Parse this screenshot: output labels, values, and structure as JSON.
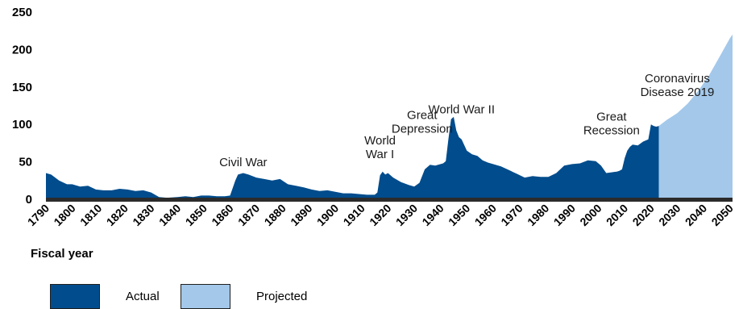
{
  "chart_data": {
    "type": "area",
    "title": "",
    "xlabel": "Fiscal year",
    "ylabel": "",
    "xlim": [
      1790,
      2051
    ],
    "ylim": [
      0,
      250
    ],
    "y_ticks": [
      0,
      50,
      100,
      150,
      200,
      250
    ],
    "x_ticks": [
      1790,
      1800,
      1810,
      1820,
      1830,
      1840,
      1850,
      1860,
      1870,
      1880,
      1890,
      1900,
      1910,
      1920,
      1930,
      1940,
      1950,
      1960,
      1970,
      1980,
      1990,
      2000,
      2010,
      2020,
      2030,
      2040,
      2050
    ],
    "grid": false,
    "legend_position": "bottom-left",
    "series": [
      {
        "name": "Actual",
        "color": "#004c8c",
        "x": [
          1790,
          1792,
          1795,
          1798,
          1800,
          1803,
          1806,
          1809,
          1812,
          1815,
          1818,
          1821,
          1824,
          1827,
          1830,
          1833,
          1836,
          1840,
          1843,
          1846,
          1849,
          1852,
          1855,
          1858,
          1860,
          1862,
          1863,
          1865,
          1867,
          1870,
          1873,
          1876,
          1879,
          1882,
          1885,
          1888,
          1891,
          1894,
          1897,
          1900,
          1903,
          1906,
          1909,
          1912,
          1915,
          1916,
          1917,
          1918,
          1919,
          1920,
          1922,
          1925,
          1928,
          1930,
          1932,
          1934,
          1936,
          1938,
          1940,
          1941,
          1942,
          1943,
          1944,
          1945,
          1946,
          1947,
          1948,
          1950,
          1952,
          1954,
          1956,
          1958,
          1960,
          1963,
          1966,
          1969,
          1972,
          1975,
          1978,
          1981,
          1984,
          1987,
          1990,
          1993,
          1996,
          1999,
          2001,
          2003,
          2005,
          2007,
          2008,
          2009,
          2010,
          2011,
          2012,
          2013,
          2015,
          2017,
          2019,
          2020,
          2021,
          2022,
          2023
        ],
        "y": [
          35,
          33,
          25,
          20,
          20,
          17,
          18,
          13,
          12,
          12,
          14,
          13,
          11,
          12,
          9,
          3,
          2,
          3,
          4,
          3,
          5,
          5,
          4,
          4,
          5,
          25,
          33,
          35,
          33,
          29,
          27,
          25,
          27,
          20,
          18,
          16,
          13,
          11,
          12,
          10,
          8,
          8,
          7,
          6,
          6,
          9,
          32,
          37,
          33,
          35,
          29,
          23,
          19,
          17,
          22,
          40,
          46,
          45,
          47,
          48,
          51,
          80,
          107,
          110,
          92,
          83,
          80,
          65,
          60,
          58,
          52,
          49,
          47,
          44,
          39,
          34,
          29,
          31,
          30,
          30,
          35,
          45,
          47,
          48,
          52,
          51,
          45,
          35,
          36,
          37,
          38,
          40,
          55,
          65,
          70,
          73,
          72,
          77,
          80,
          100,
          98,
          97,
          98
        ]
      },
      {
        "name": "Projected",
        "color": "#a3c8ea",
        "x": [
          2023,
          2026,
          2030,
          2034,
          2038,
          2042,
          2046,
          2050,
          2051
        ],
        "y": [
          98,
          106,
          115,
          128,
          145,
          165,
          190,
          215,
          220
        ]
      }
    ],
    "annotations": [
      {
        "lines": [
          "Civil War"
        ],
        "x": 1865,
        "y": 44
      },
      {
        "lines": [
          "World",
          "War I"
        ],
        "x": 1917,
        "y": 55
      },
      {
        "lines": [
          "Great",
          "Depression"
        ],
        "x": 1933,
        "y": 89
      },
      {
        "lines": [
          "World War II"
        ],
        "x": 1948,
        "y": 115
      },
      {
        "lines": [
          "Great",
          "Recession"
        ],
        "x": 2005,
        "y": 87
      },
      {
        "lines": [
          "Coronavirus",
          "Disease 2019"
        ],
        "x": 2030,
        "y": 138
      }
    ]
  }
}
